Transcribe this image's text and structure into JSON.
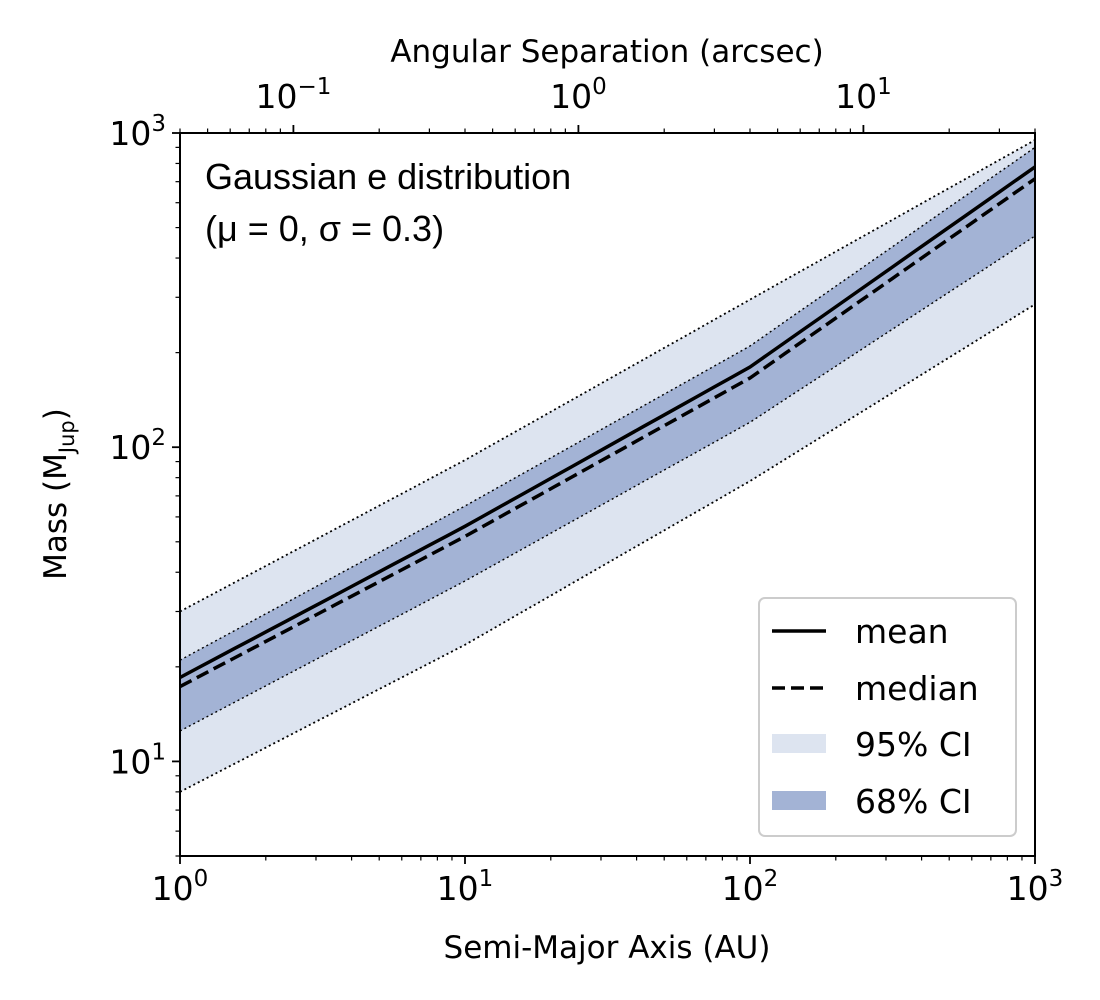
{
  "chart_data": {
    "type": "line",
    "xscale": "log",
    "yscale": "log",
    "xlim": [
      1,
      1000
    ],
    "ylim": [
      5,
      1000
    ],
    "top_xlim": [
      0.04,
      40
    ],
    "xlabel": "Semi-Major Axis (AU)",
    "ylabel": "Mass (MJup)",
    "ylabel_parts": {
      "main": "Mass (M",
      "sub": "Jup",
      "close": ")"
    },
    "top_xlabel": "Angular Separation (arcsec)",
    "x_ticks": [
      {
        "value": 1,
        "base": "10",
        "exp": "0"
      },
      {
        "value": 10,
        "base": "10",
        "exp": "1"
      },
      {
        "value": 100,
        "base": "10",
        "exp": "2"
      },
      {
        "value": 1000,
        "base": "10",
        "exp": "3"
      }
    ],
    "y_ticks": [
      {
        "value": 10,
        "base": "10",
        "exp": "1"
      },
      {
        "value": 100,
        "base": "10",
        "exp": "2"
      },
      {
        "value": 1000,
        "base": "10",
        "exp": "3"
      }
    ],
    "top_ticks": [
      {
        "value": 0.1,
        "base": "10",
        "exp": "−1"
      },
      {
        "value": 1,
        "base": "10",
        "exp": "0"
      },
      {
        "value": 10,
        "base": "10",
        "exp": "1"
      }
    ],
    "annotation": [
      "Gaussian e distribution",
      "(μ = 0,  σ = 0.3)"
    ],
    "x": [
      1,
      10,
      100,
      1000
    ],
    "series": [
      {
        "name": "mean",
        "style": "solid",
        "color": "#000000",
        "values": [
          18.5,
          56,
          180,
          780
        ]
      },
      {
        "name": "median",
        "style": "dashed",
        "color": "#000000",
        "values": [
          17.3,
          52,
          166,
          715
        ]
      }
    ],
    "bands": [
      {
        "name": "95% CI",
        "color": "#dde4f0",
        "lower": [
          8,
          23.5,
          78,
          285
        ],
        "upper": [
          30,
          91,
          295,
          950
        ]
      },
      {
        "name": "68% CI",
        "color": "#a3b3d5",
        "lower": [
          12.5,
          37.5,
          120,
          470
        ],
        "upper": [
          21,
          65,
          210,
          900
        ]
      }
    ],
    "legend": {
      "position": "lower-right",
      "entries": [
        {
          "label": "mean",
          "kind": "line-solid"
        },
        {
          "label": "median",
          "kind": "line-dashed"
        },
        {
          "label": "95% CI",
          "kind": "patch",
          "color": "#dde4f0"
        },
        {
          "label": "68% CI",
          "kind": "patch",
          "color": "#a3b3d5"
        }
      ]
    },
    "grid": false
  }
}
